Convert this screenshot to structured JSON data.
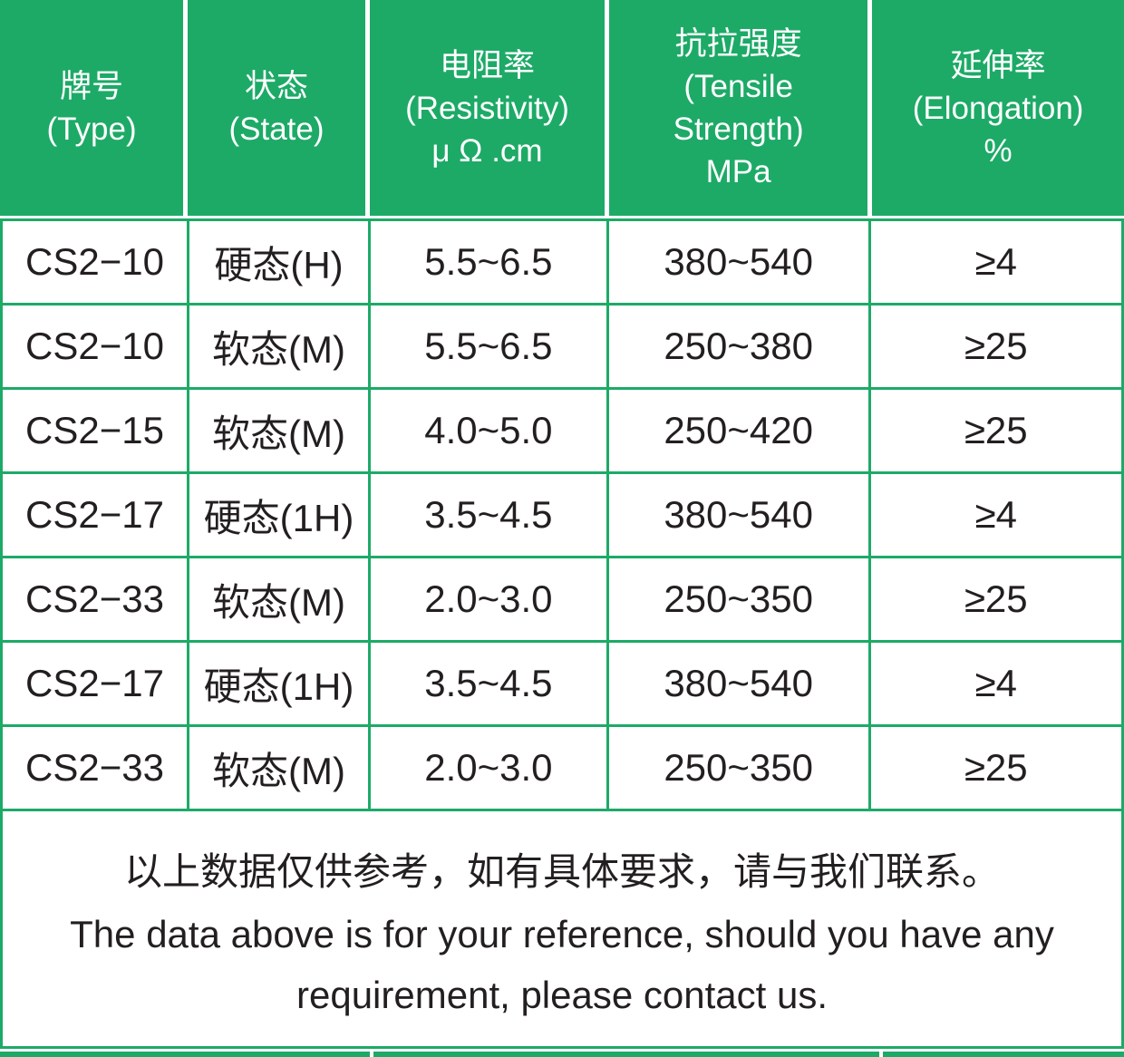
{
  "colors": {
    "accent": "#1daa67",
    "header_text": "#ffffff",
    "body_text": "#231f20",
    "background": "#ffffff"
  },
  "header": {
    "columns": [
      {
        "name": "type",
        "lines": [
          "牌号",
          "(Type)"
        ]
      },
      {
        "name": "state",
        "lines": [
          "状态",
          "(State)"
        ]
      },
      {
        "name": "resistivity",
        "lines": [
          "电阻率",
          "(Resistivity)",
          "μ Ω .cm"
        ]
      },
      {
        "name": "tensile_strength",
        "lines": [
          "抗拉强度",
          "(Tensile",
          "Strength)",
          "MPa"
        ]
      },
      {
        "name": "elongation",
        "lines": [
          "延伸率",
          "(Elongation)",
          "%"
        ]
      }
    ]
  },
  "rows": [
    {
      "type": "CS2−10",
      "state": "硬态(H)",
      "resistivity": "5.5~6.5",
      "tensile_strength": "380~540",
      "elongation": "≥4"
    },
    {
      "type": "CS2−10",
      "state": "软态(M)",
      "resistivity": "5.5~6.5",
      "tensile_strength": "250~380",
      "elongation": "≥25"
    },
    {
      "type": "CS2−15",
      "state": "软态(M)",
      "resistivity": "4.0~5.0",
      "tensile_strength": "250~420",
      "elongation": "≥25"
    },
    {
      "type": "CS2−17",
      "state": "硬态(1H)",
      "resistivity": "3.5~4.5",
      "tensile_strength": "380~540",
      "elongation": "≥4"
    },
    {
      "type": "CS2−33",
      "state": "软态(M)",
      "resistivity": "2.0~3.0",
      "tensile_strength": "250~350",
      "elongation": "≥25"
    },
    {
      "type": "CS2−17",
      "state": "硬态(1H)",
      "resistivity": "3.5~4.5",
      "tensile_strength": "380~540",
      "elongation": "≥4"
    },
    {
      "type": "CS2−33",
      "state": "软态(M)",
      "resistivity": "2.0~3.0",
      "tensile_strength": "250~350",
      "elongation": "≥25"
    }
  ],
  "footer": {
    "note_cn": "以上数据仅供参考，如有具体要求，请与我们联系。",
    "note_en_line1": "The data above is for your reference, should you have any",
    "note_en_line2": "requirement, please contact us."
  }
}
